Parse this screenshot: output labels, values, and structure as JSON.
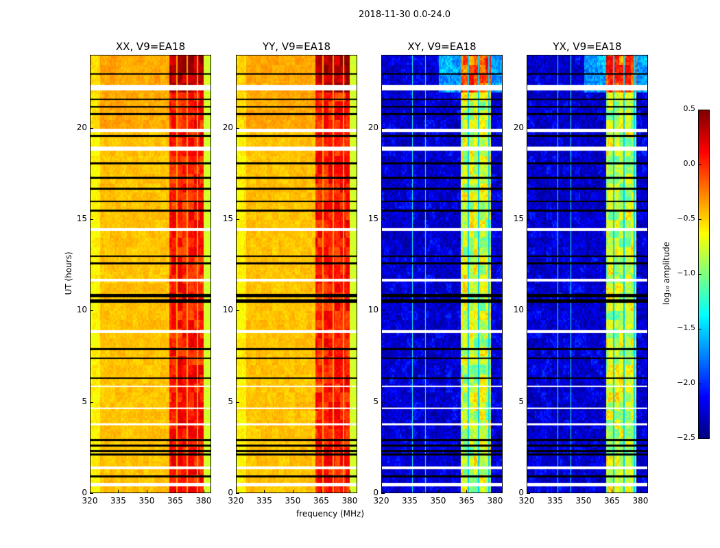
{
  "chart_data": {
    "type": "heatmap",
    "title": "2018-11-30 0.0-24.0",
    "xlabel": "frequency (MHz)",
    "ylabel": "UT (hours)",
    "xlim": [
      320,
      384
    ],
    "ylim": [
      0,
      24
    ],
    "xticks": [
      "320",
      "335",
      "350",
      "365",
      "380"
    ],
    "yticks": [
      "0",
      "5",
      "10",
      "15",
      "20"
    ],
    "panels": [
      {
        "title": "XX, V9=EA18",
        "kind": "auto"
      },
      {
        "title": "YY, V9=EA18",
        "kind": "auto"
      },
      {
        "title": "XY, V9=EA18",
        "kind": "cross"
      },
      {
        "title": "YX, V9=EA18",
        "kind": "cross"
      }
    ],
    "auto_levels": {
      "background": -0.45,
      "band": 0.05,
      "band_range_mhz": [
        362,
        380
      ]
    },
    "cross_levels": {
      "background": -2.3,
      "band": -0.8,
      "band_range_mhz": [
        362,
        378
      ]
    },
    "band_gaps_mhz": [
      366,
      371.5,
      377
    ],
    "flagged_white_hours": [
      [
        22.1,
        22.4
      ],
      [
        19.8,
        20.0
      ],
      [
        18.8,
        19.0
      ],
      [
        14.4,
        14.55
      ],
      [
        11.6,
        11.75
      ],
      [
        8.8,
        8.95
      ],
      [
        5.8,
        5.9
      ],
      [
        4.6,
        4.7
      ],
      [
        3.7,
        3.8
      ],
      [
        1.3,
        1.45
      ],
      [
        0.35,
        0.55
      ]
    ],
    "flagged_black_hours": [
      23.0,
      21.6,
      21.2,
      20.8,
      19.6,
      18.1,
      17.3,
      16.7,
      16.0,
      15.5,
      13.0,
      12.6,
      10.9,
      10.8,
      10.6,
      10.5,
      7.9,
      7.4,
      6.3,
      2.9,
      2.6,
      2.3,
      2.1,
      0.9
    ],
    "colorbar": {
      "label": "log₁₀ amplitude",
      "range": [
        -2.5,
        0.5
      ],
      "ticks": [
        "0.5",
        "0.0",
        "−0.5",
        "−1.0",
        "−1.5",
        "−2.0",
        "−2.5"
      ],
      "colormap": "jet"
    }
  }
}
